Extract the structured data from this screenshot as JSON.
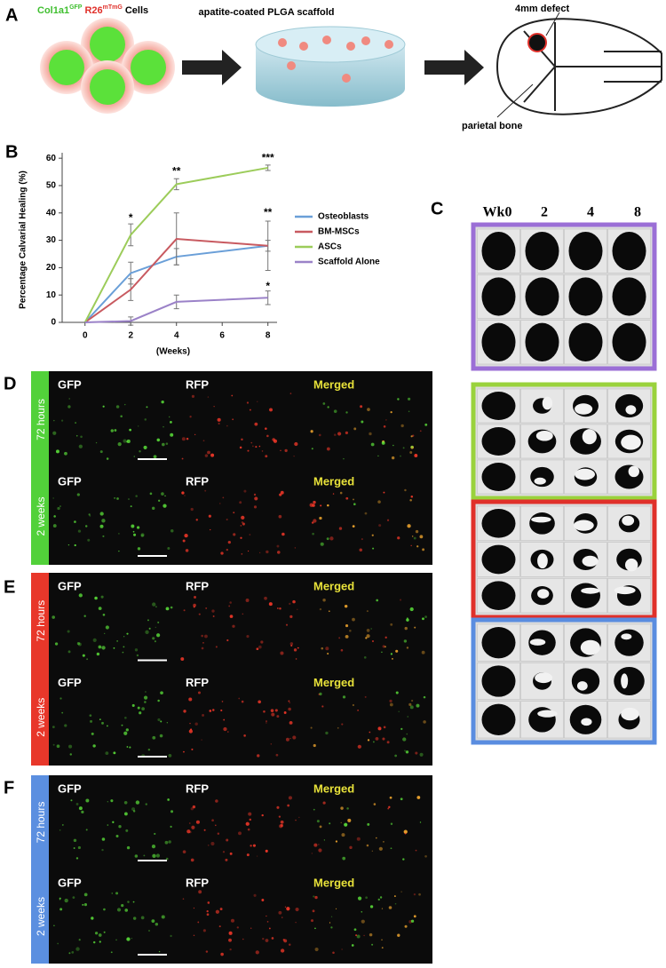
{
  "panel_labels": [
    "A",
    "B",
    "C",
    "D",
    "E",
    "F"
  ],
  "panel_a": {
    "cells_label": {
      "gene1": "Col1a1",
      "gene1_sup": "GFP",
      "gene2": "R26",
      "gene2_sup": "mTmG",
      "suffix": "Cells"
    },
    "scaffold_label": "apatite-coated PLGA scaffold",
    "defect_label": "4mm defect",
    "bone_label": "parietal bone"
  },
  "chart_data": {
    "type": "line",
    "y_label": "Percentage Calvarial Healing (%)",
    "x_label": "(Weeks)",
    "x": [
      0,
      2,
      4,
      8
    ],
    "xlim": [
      -1,
      8.4
    ],
    "xticks": [
      0,
      2,
      4,
      6,
      8
    ],
    "ylim": [
      0,
      62
    ],
    "yticks": [
      0,
      10,
      20,
      30,
      40,
      50,
      60
    ],
    "legend": "right",
    "series": [
      {
        "name": "Osteoblasts",
        "color": "#6a9fd8",
        "values": [
          0,
          18,
          24,
          28
        ],
        "errors": [
          0,
          4,
          3,
          2
        ]
      },
      {
        "name": "BM-MSCs",
        "color": "#c85a60",
        "values": [
          0,
          12,
          30.5,
          28
        ],
        "errors": [
          0,
          4,
          9.5,
          9
        ]
      },
      {
        "name": "ASCs",
        "color": "#9ccc5a",
        "values": [
          0,
          32,
          50.5,
          56.5
        ],
        "errors": [
          0,
          4,
          2,
          1
        ]
      },
      {
        "name": "Scaffold Alone",
        "color": "#9b82c8",
        "values": [
          0,
          0.5,
          7.5,
          9
        ],
        "errors": [
          0,
          1.5,
          2.5,
          2.5
        ]
      }
    ],
    "annotations": [
      {
        "text": "*",
        "x": 2,
        "y": 38
      },
      {
        "text": "**",
        "x": 4,
        "y": 55
      },
      {
        "text": "***",
        "x": 8,
        "y": 60
      },
      {
        "text": "**",
        "x": 8,
        "y": 40
      },
      {
        "text": "*",
        "x": 8,
        "y": 13
      }
    ]
  },
  "panel_c": {
    "headers": [
      "Wk0",
      "2",
      "4",
      "8"
    ],
    "group_colors": [
      "#9b6fd6",
      "#9ad23c",
      "#e0302a",
      "#5a8de0"
    ]
  },
  "fluorescence_panels": [
    {
      "color": "#52d13a",
      "rows": [
        {
          "time": "72 hours",
          "channels": [
            "GFP",
            "RFP",
            "Merged"
          ]
        },
        {
          "time": "2 weeks",
          "channels": [
            "GFP",
            "RFP",
            "Merged"
          ]
        }
      ]
    },
    {
      "color": "#e8372a",
      "rows": [
        {
          "time": "72 hours",
          "channels": [
            "GFP",
            "RFP",
            "Merged"
          ]
        },
        {
          "time": "2 weeks",
          "channels": [
            "GFP",
            "RFP",
            "Merged"
          ]
        }
      ]
    },
    {
      "color": "#5b8fe0",
      "rows": [
        {
          "time": "72 hours",
          "channels": [
            "GFP",
            "RFP",
            "Merged"
          ]
        },
        {
          "time": "2 weeks",
          "channels": [
            "GFP",
            "RFP",
            "Merged"
          ]
        }
      ]
    }
  ]
}
